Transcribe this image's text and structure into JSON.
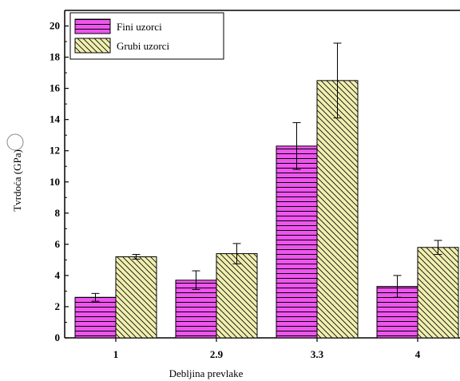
{
  "chart_data": {
    "type": "bar",
    "title": "",
    "xlabel": "Debljina prevlake",
    "ylabel": "Tvrdoća (GPa)",
    "categories": [
      "1",
      "2.9",
      "3.3",
      "4"
    ],
    "ylim": [
      0,
      21
    ],
    "yticks": [
      "0",
      "2",
      "4",
      "6",
      "8",
      "10",
      "12",
      "14",
      "16",
      "18",
      "20"
    ],
    "series": [
      {
        "name": "Fini uzorci",
        "values": [
          2.6,
          3.7,
          12.3,
          3.3
        ],
        "errors": [
          0.25,
          0.6,
          1.5,
          0.7
        ],
        "color": "#ee55ee",
        "pattern": "horizontal-lines"
      },
      {
        "name": "Grubi uzorci",
        "values": [
          5.2,
          5.4,
          16.5,
          5.8
        ],
        "errors": [
          0.15,
          0.65,
          2.4,
          0.45
        ],
        "color": "#f0efb0",
        "pattern": "diagonal-hatch"
      }
    ],
    "legend_position": "top-left",
    "grid": false
  }
}
